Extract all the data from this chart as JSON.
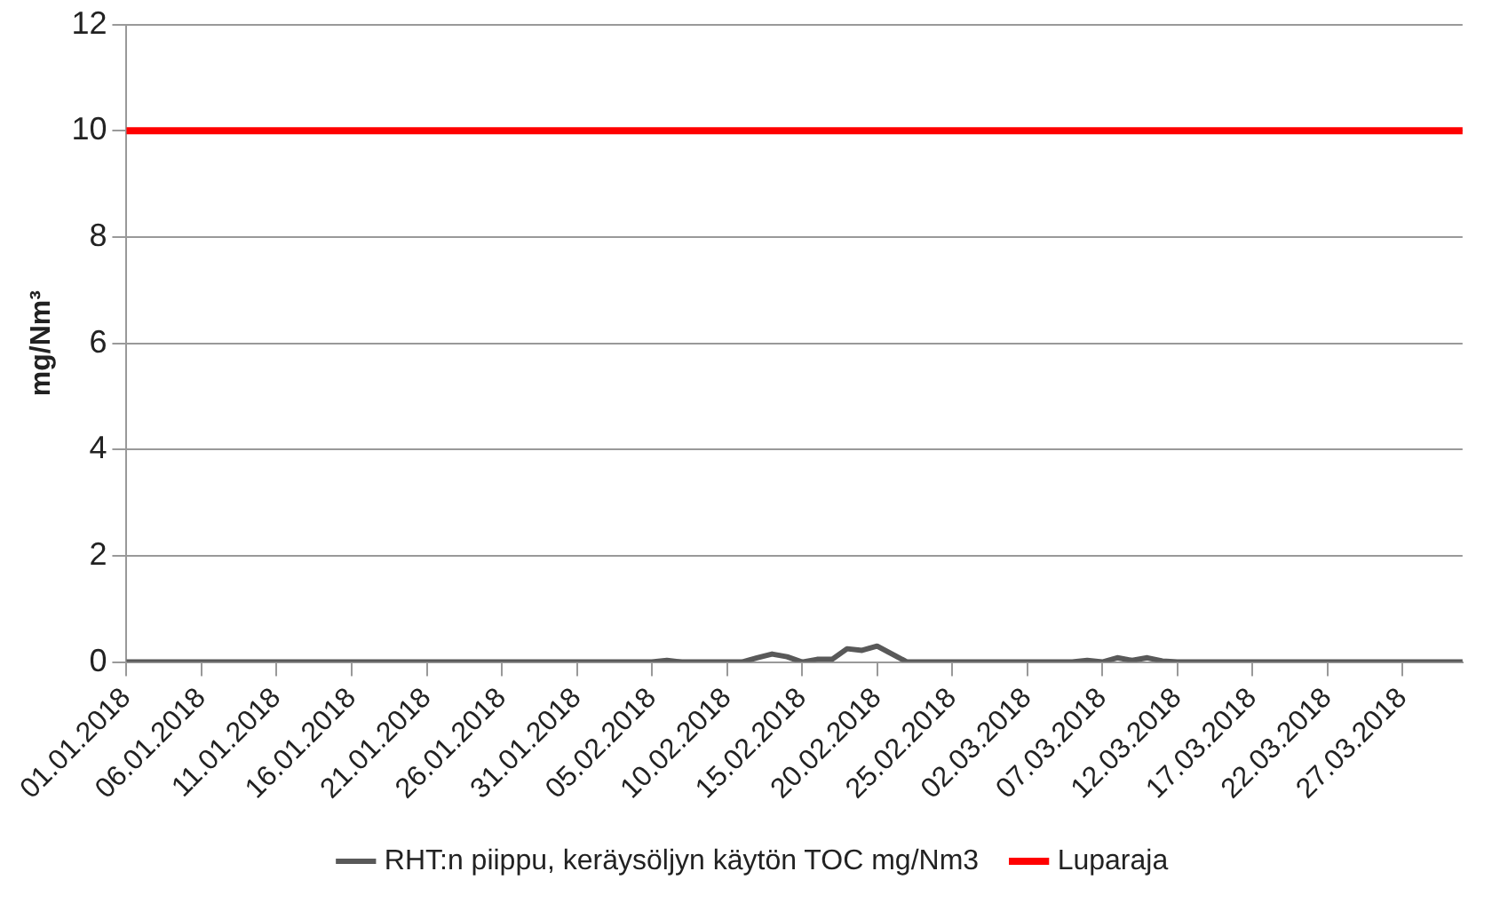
{
  "chart_data": {
    "type": "line",
    "ylabel": "mg/Nm³",
    "categories": [
      "01.01.2018",
      null,
      null,
      null,
      null,
      "06.01.2018",
      null,
      null,
      null,
      null,
      "11.01.2018",
      null,
      null,
      null,
      null,
      "16.01.2018",
      null,
      null,
      null,
      null,
      "21.01.2018",
      null,
      null,
      null,
      null,
      "26.01.2018",
      null,
      null,
      null,
      null,
      "31.01.2018",
      null,
      null,
      null,
      null,
      "05.02.2018",
      null,
      null,
      null,
      null,
      "10.02.2018",
      null,
      null,
      null,
      null,
      "15.02.2018",
      null,
      null,
      null,
      null,
      "20.02.2018",
      null,
      null,
      null,
      null,
      "25.02.2018",
      null,
      null,
      null,
      null,
      "02.03.2018",
      null,
      null,
      null,
      null,
      "07.03.2018",
      null,
      null,
      null,
      null,
      "12.03.2018",
      null,
      null,
      null,
      null,
      "17.03.2018",
      null,
      null,
      null,
      null,
      "22.03.2018",
      null,
      null,
      null,
      null,
      "27.03.2018",
      null,
      null,
      null,
      null
    ],
    "series": [
      {
        "name": "RHT:n piippu, keräysöljyn käytön TOC mg/Nm3",
        "color": "#595959",
        "values": [
          0,
          0,
          0,
          0,
          0,
          0,
          0,
          0,
          0,
          0,
          0,
          0,
          0,
          0,
          0,
          0,
          0,
          0,
          0,
          0,
          0,
          0,
          0,
          0,
          0,
          0,
          0,
          0,
          0,
          0,
          0,
          0,
          0,
          0,
          0,
          0,
          0.03,
          0,
          0,
          0,
          0,
          0,
          0.08,
          0.15,
          0.1,
          0,
          0.05,
          0.05,
          0.25,
          0.22,
          0.3,
          0.15,
          0,
          0,
          0,
          0,
          0,
          0,
          0,
          0,
          0,
          0,
          0,
          0,
          0.03,
          0,
          0.08,
          0.03,
          0.08,
          0.02,
          0,
          0,
          0,
          0,
          0,
          0,
          0,
          0,
          0,
          0,
          0,
          0,
          0,
          0,
          0,
          0,
          0,
          0,
          0,
          0
        ]
      },
      {
        "name": "Luparaja",
        "color": "#ff0000",
        "values": [
          10,
          10,
          10,
          10,
          10,
          10,
          10,
          10,
          10,
          10,
          10,
          10,
          10,
          10,
          10,
          10,
          10,
          10,
          10,
          10,
          10,
          10,
          10,
          10,
          10,
          10,
          10,
          10,
          10,
          10,
          10,
          10,
          10,
          10,
          10,
          10,
          10,
          10,
          10,
          10,
          10,
          10,
          10,
          10,
          10,
          10,
          10,
          10,
          10,
          10,
          10,
          10,
          10,
          10,
          10,
          10,
          10,
          10,
          10,
          10,
          10,
          10,
          10,
          10,
          10,
          10,
          10,
          10,
          10,
          10,
          10,
          10,
          10,
          10,
          10,
          10,
          10,
          10,
          10,
          10,
          10,
          10,
          10,
          10,
          10,
          10,
          10,
          10,
          10,
          10
        ]
      }
    ],
    "ylim": [
      0,
      12
    ],
    "yticks": [
      0,
      2,
      4,
      6,
      8,
      10,
      12
    ],
    "grid": "y",
    "legend": "bottom",
    "marker": "none",
    "line_style": "solid"
  }
}
